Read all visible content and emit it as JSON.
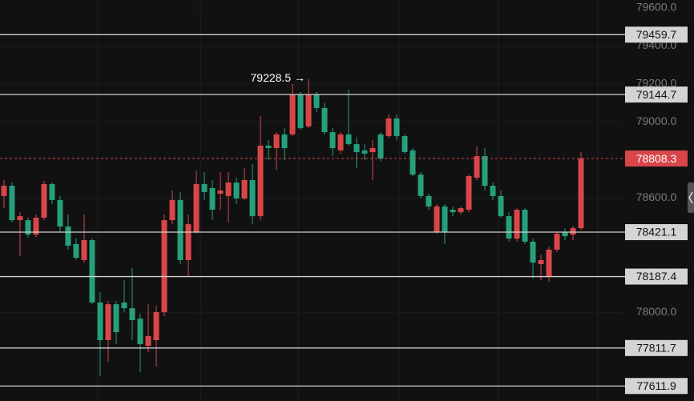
{
  "chart_data": {
    "type": "candlestick",
    "up_color": "#d9464a",
    "down_color": "#26a07c",
    "open": [
      78611,
      78665,
      78484,
      78484,
      78408,
      78497,
      78674,
      78590,
      78451,
      78358,
      78274,
      78379,
      78051,
      77853,
      78042,
      78051,
      78021,
      77966,
      77823,
      77853,
      78000,
      78484,
      78590,
      78274,
      78421,
      78674,
      78653,
      78623,
      78611,
      78682,
      78598,
      78695,
      78505,
      78876,
      78863,
      78935,
      78935,
      79145,
      78977,
      79145,
      79074,
      78947,
      78851,
      78935,
      78884,
      78851,
      78842,
      78935,
      78926,
      79019,
      78926,
      78851,
      78724,
      78611,
      78421,
      78556,
      78539,
      78526,
      78539,
      78707,
      78821,
      78665,
      78611,
      78505,
      78387,
      78539,
      78371,
      78253,
      78190,
      78329,
      78421,
      78408,
      78442
    ],
    "high": [
      78695,
      78682,
      78526,
      78497,
      78514,
      78691,
      78682,
      78611,
      78514,
      78387,
      78514,
      78387,
      78105,
      78059,
      78059,
      78168,
      78232,
      77992,
      78042,
      78034,
      78514,
      78640,
      78632,
      78514,
      78745,
      78737,
      78695,
      78737,
      78737,
      78707,
      78758,
      78779,
      79031,
      78905,
      78947,
      78968,
      79200,
      79158,
      79228.5,
      79158,
      79103,
      78968,
      78947,
      79170,
      78918,
      78884,
      78905,
      78947,
      79040,
      79040,
      78935,
      78863,
      78737,
      78623,
      78568,
      78568,
      78556,
      78556,
      78724,
      78872,
      78863,
      78682,
      78640,
      78526,
      78547,
      78547,
      78387,
      78303,
      78345,
      78421,
      78442,
      78455,
      78842
    ],
    "low": [
      78547,
      78472,
      78295,
      78392,
      78396,
      78484,
      78568,
      78421,
      78329,
      78274,
      78261,
      78042,
      77663,
      77739,
      77832,
      78000,
      77853,
      77684,
      77790,
      77714,
      77979,
      78463,
      78253,
      78190,
      78413,
      78590,
      78484,
      78539,
      78472,
      78568,
      78590,
      78463,
      78484,
      78800,
      78749,
      78800,
      78926,
      78960,
      78968,
      79053,
      78935,
      78821,
      78834,
      78876,
      78758,
      78800,
      78695,
      78792,
      78918,
      78905,
      78834,
      78716,
      78598,
      78539,
      78413,
      78358,
      78505,
      78514,
      78526,
      78695,
      78640,
      78590,
      78497,
      78371,
      78371,
      78358,
      78177,
      78169,
      78160,
      78316,
      78379,
      78379,
      78434
    ],
    "close": [
      78665,
      78484,
      78505,
      78408,
      78497,
      78674,
      78590,
      78451,
      78350,
      78286,
      78379,
      78051,
      77853,
      78042,
      77895,
      78021,
      77958,
      77832,
      77874,
      78000,
      78484,
      78590,
      78274,
      78463,
      78674,
      78632,
      78539,
      78640,
      78682,
      78598,
      78695,
      78505,
      78876,
      78863,
      78935,
      78863,
      79145,
      78968,
      79145,
      79074,
      78947,
      78863,
      78935,
      78884,
      78842,
      78834,
      78863,
      78808,
      79019,
      78926,
      78842,
      78724,
      78611,
      78556,
      78556,
      78421,
      78526,
      78547,
      78716,
      78821,
      78665,
      78611,
      78505,
      78387,
      78539,
      78371,
      78261,
      78274,
      78329,
      78413,
      78400,
      78442,
      78808.3
    ],
    "ylim": [
      77533,
      79642
    ],
    "yticks": [
      {
        "value": 79600,
        "label": "79600.0"
      },
      {
        "value": 79400,
        "label": "79400.0"
      },
      {
        "value": 79200,
        "label": "79200.0"
      },
      {
        "value": 79000,
        "label": "79000.0"
      },
      {
        "value": 78600,
        "label": "78600.0"
      },
      {
        "value": 78000,
        "label": "78000.0"
      }
    ],
    "levels": [
      79459.7,
      79144.7,
      78421.1,
      78187.4,
      77811.7,
      77611.9
    ],
    "last_price": {
      "value": 78808.3,
      "color": "#d9464a"
    },
    "max_marker": {
      "value": 79228.5,
      "label": "79228.5 →"
    }
  }
}
